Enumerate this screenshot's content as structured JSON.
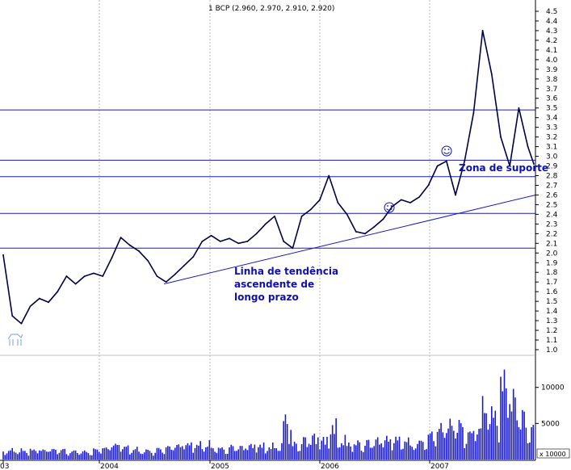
{
  "chart_data": {
    "type": "line",
    "title": "1 BCP (2.960, 2.970, 2.910, 2.920)",
    "x_tick_labels": [
      "03",
      "2004",
      "2005",
      "2006",
      "2007"
    ],
    "price_axis": {
      "ylim": [
        1.0,
        4.5
      ],
      "ticks": [
        "4.5",
        "4.4",
        "4.3",
        "4.2",
        "4.1",
        "4.0",
        "3.9",
        "3.8",
        "3.7",
        "3.6",
        "3.5",
        "3.4",
        "3.3",
        "3.2",
        "3.1",
        "3.0",
        "2.9",
        "2.8",
        "2.7",
        "2.6",
        "2.5",
        "2.4",
        "2.3",
        "2.2",
        "2.1",
        "2.0",
        "1.9",
        "1.8",
        "1.7",
        "1.6",
        "1.5",
        "1.4",
        "1.3",
        "1.2",
        "1.1",
        "1.0"
      ]
    },
    "volume_axis": {
      "ylim": [
        0,
        14000
      ],
      "ticks": [
        "10000",
        "5000"
      ],
      "footer_label": "x 10000"
    },
    "horizontal_lines": [
      3.48,
      2.96,
      2.79,
      2.41,
      2.05
    ],
    "trendline": {
      "from": [
        "2004-06",
        1.68
      ],
      "to": [
        "2007-12",
        2.6
      ]
    },
    "annotations": {
      "zone": "Zona de suporte",
      "trend_line1": "Linha de tendência",
      "trend_line2": "ascendente de",
      "trend_line3": "longo prazo"
    },
    "series": [
      {
        "type": "line",
        "x": [
          "2003-01",
          "2003-02",
          "2003-03",
          "2003-04",
          "2003-05",
          "2003-06",
          "2003-07",
          "2003-08",
          "2003-09",
          "2003-10",
          "2003-11",
          "2003-12",
          "2004-01",
          "2004-02",
          "2004-03",
          "2004-04",
          "2004-05",
          "2004-06",
          "2004-07",
          "2004-08",
          "2004-09",
          "2004-10",
          "2004-11",
          "2004-12",
          "2005-01",
          "2005-02",
          "2005-03",
          "2005-04",
          "2005-05",
          "2005-06",
          "2005-07",
          "2005-08",
          "2005-09",
          "2005-10",
          "2005-11",
          "2005-12",
          "2006-01",
          "2006-02",
          "2006-03",
          "2006-04",
          "2006-05",
          "2006-06",
          "2006-07",
          "2006-08",
          "2006-09",
          "2006-10",
          "2006-11",
          "2006-12",
          "2007-01",
          "2007-02",
          "2007-03",
          "2007-04",
          "2007-05",
          "2007-06",
          "2007-07",
          "2007-08",
          "2007-09",
          "2007-10",
          "2007-11",
          "2007-12"
        ],
        "values": [
          1.98,
          1.35,
          1.27,
          1.45,
          1.53,
          1.49,
          1.6,
          1.76,
          1.68,
          1.76,
          1.79,
          1.76,
          1.95,
          2.16,
          2.08,
          2.02,
          1.92,
          1.76,
          1.7,
          1.78,
          1.87,
          1.96,
          2.12,
          2.18,
          2.12,
          2.15,
          2.1,
          2.12,
          2.2,
          2.3,
          2.38,
          2.12,
          2.05,
          2.38,
          2.45,
          2.55,
          2.8,
          2.52,
          2.4,
          2.22,
          2.2,
          2.27,
          2.35,
          2.48,
          2.55,
          2.52,
          2.58,
          2.7,
          2.9,
          2.95,
          2.6,
          2.95,
          3.45,
          4.3,
          3.85,
          3.2,
          2.9,
          3.5,
          3.1,
          2.92
        ]
      }
    ],
    "volume_values": [
      1800,
      1900,
      1600,
      1500,
      1400,
      1500,
      1600,
      1500,
      1700,
      1400,
      1600,
      1700,
      2200,
      2000,
      1900,
      1800,
      1700,
      1800,
      1900,
      2100,
      2400,
      2600,
      3100,
      2500,
      2000,
      2100,
      1900,
      2200,
      2400,
      2600,
      3100,
      8400,
      2700,
      3200,
      3600,
      3400,
      6400,
      4500,
      3800,
      3300,
      3000,
      3100,
      3400,
      3800,
      4100,
      3700,
      3900,
      4600,
      5200,
      5700,
      6100,
      5300,
      7600,
      12400,
      8900,
      13400,
      9800,
      7200,
      5600,
      4300
    ]
  }
}
